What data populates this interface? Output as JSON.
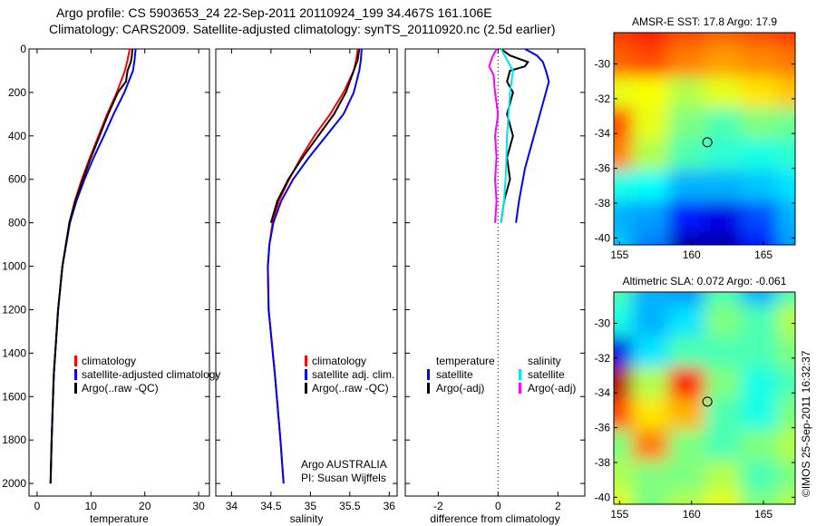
{
  "title_line1": "Argo profile: CS 5903653_24 22-Sep-2011 20110924_199 34.467S 161.106E",
  "title_line2": "Climatology: CARS2009. Satellite-adjusted climatology: synTS_20110920.nc (2.5d earlier)",
  "credit": "©IMOS 25-Sep-2011 16:32:37",
  "colors": {
    "climatology": "#ff0000",
    "satellite": "#0000ff",
    "argo": "#000000",
    "sal_satellite": "#00e5ee",
    "sal_argo": "#ff00ff"
  },
  "chart_data": [
    {
      "type": "line",
      "name": "temperature-profile",
      "xlabel": "temperature",
      "ylabel": "depth",
      "xlim": [
        -1.5,
        32
      ],
      "ylim": [
        2058,
        0
      ],
      "xticks": [
        0,
        10,
        20,
        30
      ],
      "yticks": [
        0,
        200,
        400,
        600,
        800,
        1000,
        1200,
        1400,
        1600,
        1800,
        2000
      ],
      "legend": [
        "climatology",
        "satellite-adjusted climatology",
        "Argo(..raw -QC)"
      ],
      "series": [
        {
          "name": "climatology",
          "color": "#ff0000",
          "depth": [
            0,
            50,
            100,
            200,
            300,
            400,
            500,
            600,
            700,
            800,
            1000,
            1200,
            1500,
            1800,
            2000
          ],
          "values": [
            17.2,
            16.8,
            16.3,
            14.8,
            13.0,
            11.4,
            9.8,
            8.3,
            7.0,
            6.0,
            4.7,
            3.9,
            3.1,
            2.7,
            2.5
          ]
        },
        {
          "name": "satellite-adjusted climatology",
          "color": "#0000ff",
          "depth": [
            0,
            50,
            100,
            200,
            300,
            400,
            500,
            600,
            700,
            800,
            1000,
            1200,
            1500,
            1800,
            2000
          ],
          "values": [
            18.3,
            18.1,
            17.8,
            16.2,
            14.2,
            12.4,
            10.5,
            8.8,
            7.3,
            6.1,
            4.7,
            3.9,
            3.1,
            2.7,
            2.5
          ]
        },
        {
          "name": "Argo(..raw -QC)",
          "color": "#000000",
          "depth": [
            0,
            30,
            60,
            100,
            150,
            200,
            300,
            400,
            500,
            600,
            700,
            800,
            1000,
            1200,
            1500,
            1800,
            2000
          ],
          "values": [
            17.7,
            17.6,
            17.4,
            16.8,
            16.5,
            15.0,
            13.2,
            11.6,
            10.0,
            8.5,
            7.1,
            6.0,
            4.7,
            3.9,
            3.1,
            2.7,
            2.5
          ]
        }
      ]
    },
    {
      "type": "line",
      "name": "salinity-profile",
      "xlabel": "salinity",
      "xlim": [
        33.8,
        36.1
      ],
      "ylim": [
        2058,
        0
      ],
      "xticks": [
        34,
        34.5,
        35,
        35.5,
        36
      ],
      "legend": [
        "climatology",
        "satellite adj. clim.",
        "Argo(..raw -QC)"
      ],
      "annotation": [
        "Argo AUSTRALIA",
        "PI: Susan Wijffels"
      ],
      "series": [
        {
          "name": "climatology",
          "color": "#ff0000",
          "depth": [
            0,
            50,
            100,
            200,
            300,
            400,
            500,
            600,
            700,
            800,
            900,
            1000,
            1200,
            1500,
            1800,
            2000
          ],
          "values": [
            35.6,
            35.58,
            35.55,
            35.42,
            35.25,
            35.05,
            34.88,
            34.73,
            34.6,
            34.52,
            34.48,
            34.46,
            34.47,
            34.55,
            34.62,
            34.66
          ]
        },
        {
          "name": "satellite adj. clim.",
          "color": "#0000ff",
          "depth": [
            0,
            50,
            100,
            200,
            300,
            400,
            500,
            600,
            700,
            800,
            900,
            1000,
            1200,
            1500,
            1800,
            2000
          ],
          "values": [
            35.65,
            35.64,
            35.62,
            35.55,
            35.42,
            35.2,
            34.98,
            34.78,
            34.63,
            34.53,
            34.48,
            34.46,
            34.47,
            34.55,
            34.62,
            34.66
          ]
        },
        {
          "name": "Argo(..raw -QC)",
          "color": "#000000",
          "depth": [
            0,
            50,
            100,
            150,
            200,
            300,
            400,
            500,
            600,
            700,
            800
          ],
          "values": [
            35.62,
            35.6,
            35.55,
            35.5,
            35.45,
            35.3,
            35.1,
            34.9,
            34.72,
            34.58,
            34.5
          ]
        }
      ]
    },
    {
      "type": "line",
      "name": "difference-profile",
      "xlabel": "difference from climatology",
      "xlim": [
        -3.1,
        2.9
      ],
      "ylim": [
        2058,
        0
      ],
      "xticks": [
        -2,
        0,
        2
      ],
      "legend_groups": [
        {
          "title": "temperature",
          "items": [
            "satellite",
            "Argo(-adj)"
          ]
        },
        {
          "title": "salinity",
          "items": [
            "satellite",
            "Argo(-adj)"
          ]
        }
      ],
      "series": [
        {
          "name": "temperature satellite",
          "color": "#0000ff",
          "depth": [
            0,
            30,
            60,
            100,
            150,
            250,
            400,
            550,
            700,
            800
          ],
          "values": [
            0.9,
            1.3,
            1.5,
            1.6,
            1.7,
            1.5,
            1.2,
            0.9,
            0.7,
            0.6
          ]
        },
        {
          "name": "temperature Argo(-adj)",
          "color": "#000000",
          "depth": [
            0,
            30,
            60,
            80,
            100,
            150,
            200,
            300,
            400,
            500,
            600,
            700,
            800
          ],
          "values": [
            0.1,
            0.4,
            1.0,
            0.9,
            0.4,
            0.3,
            0.5,
            0.3,
            0.5,
            0.3,
            0.4,
            0.2,
            0.1
          ]
        },
        {
          "name": "salinity satellite",
          "color": "#00e5ee",
          "depth": [
            0,
            50,
            100,
            200,
            300,
            400,
            500,
            600,
            700,
            800
          ],
          "values": [
            0.1,
            0.3,
            0.5,
            0.4,
            0.35,
            0.3,
            0.28,
            0.25,
            0.2,
            0.1
          ]
        },
        {
          "name": "salinity Argo(-adj)",
          "color": "#ff00ff",
          "depth": [
            0,
            40,
            80,
            120,
            200,
            300,
            400,
            500,
            600,
            700,
            800
          ],
          "values": [
            -0.05,
            -0.2,
            -0.3,
            -0.15,
            -0.1,
            0.0,
            -0.1,
            -0.05,
            -0.1,
            -0.05,
            -0.1
          ]
        }
      ]
    },
    {
      "type": "heatmap",
      "name": "sst-map",
      "title": "AMSR-E SST: 17.8 Argo: 17.9",
      "xlim": [
        154.6,
        167.2
      ],
      "ylim": [
        -40.4,
        -28.2
      ],
      "xticks": [
        155,
        160,
        165
      ],
      "yticks": [
        -30,
        -32,
        -34,
        -36,
        -38,
        -40
      ],
      "marker": {
        "lon": 161.1,
        "lat": -34.5
      },
      "grid": [
        [
          0.82,
          0.84,
          0.8,
          0.78,
          0.8,
          0.82
        ],
        [
          0.78,
          0.8,
          0.75,
          0.72,
          0.74,
          0.76
        ],
        [
          0.6,
          0.62,
          0.55,
          0.6,
          0.65,
          0.68
        ],
        [
          0.8,
          0.6,
          0.5,
          0.45,
          0.5,
          0.48
        ],
        [
          0.75,
          0.55,
          0.45,
          0.42,
          0.4,
          0.42
        ],
        [
          0.4,
          0.38,
          0.3,
          0.3,
          0.32,
          0.35
        ],
        [
          0.3,
          0.28,
          0.15,
          0.1,
          0.2,
          0.3
        ],
        [
          0.32,
          0.25,
          0.05,
          0.05,
          0.15,
          0.28
        ]
      ]
    },
    {
      "type": "heatmap",
      "name": "sla-map",
      "title": "Altimetric SLA: 0.072 Argo: -0.061",
      "xlim": [
        154.6,
        167.2
      ],
      "ylim": [
        -40.4,
        -28.2
      ],
      "xticks": [
        155,
        160,
        165
      ],
      "yticks": [
        -30,
        -32,
        -34,
        -36,
        -38,
        -40
      ],
      "marker": {
        "lon": 161.1,
        "lat": -34.5
      },
      "grid": [
        [
          0.45,
          0.3,
          0.28,
          0.45,
          0.3,
          0.45
        ],
        [
          0.4,
          0.3,
          0.35,
          0.5,
          0.45,
          0.55
        ],
        [
          0.1,
          0.35,
          0.45,
          0.45,
          0.45,
          0.5
        ],
        [
          0.95,
          0.55,
          0.85,
          0.5,
          0.4,
          0.45
        ],
        [
          0.8,
          0.65,
          0.7,
          0.45,
          0.4,
          0.5
        ],
        [
          0.5,
          0.75,
          0.5,
          0.45,
          0.5,
          0.55
        ],
        [
          0.55,
          0.5,
          0.5,
          0.55,
          0.45,
          0.5
        ],
        [
          0.6,
          0.5,
          0.55,
          0.6,
          0.5,
          0.55
        ]
      ]
    }
  ]
}
